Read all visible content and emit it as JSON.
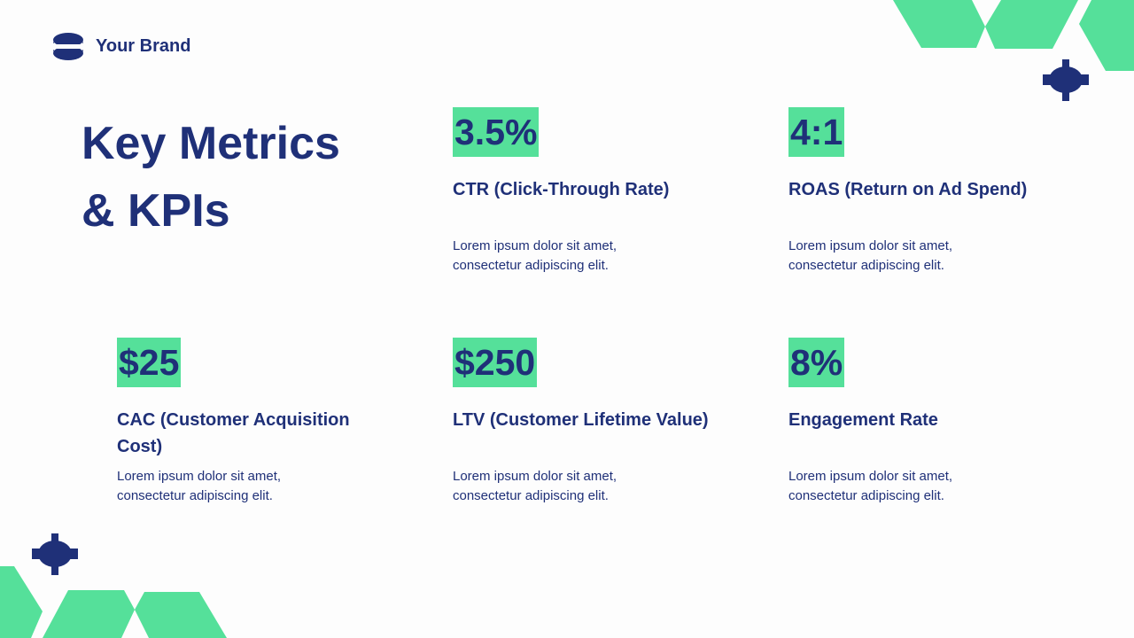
{
  "brand": {
    "name": "Your Brand"
  },
  "title": {
    "line1": "Key Metrics",
    "line2": "& KPIs"
  },
  "metrics": [
    {
      "value": "3.5%",
      "label": "CTR (Click-Through Rate)",
      "desc1": "Lorem ipsum dolor sit amet,",
      "desc2": "consectetur adipiscing elit."
    },
    {
      "value": "4:1",
      "label": "ROAS (Return on Ad Spend)",
      "desc1": "Lorem ipsum dolor sit amet,",
      "desc2": "consectetur adipiscing elit."
    },
    {
      "value": "$25",
      "label": "CAC (Customer Acquisition Cost)",
      "desc1": "Lorem ipsum dolor sit amet,",
      "desc2": "consectetur adipiscing elit."
    },
    {
      "value": "$250",
      "label": "LTV (Customer Lifetime Value)",
      "desc1": "Lorem ipsum dolor sit amet,",
      "desc2": "consectetur adipiscing elit."
    },
    {
      "value": "8%",
      "label": "Engagement Rate",
      "desc1": "Lorem ipsum dolor sit amet,",
      "desc2": "consectetur adipiscing elit."
    }
  ],
  "colors": {
    "navy": "#1f3078",
    "green": "#55e09a"
  }
}
